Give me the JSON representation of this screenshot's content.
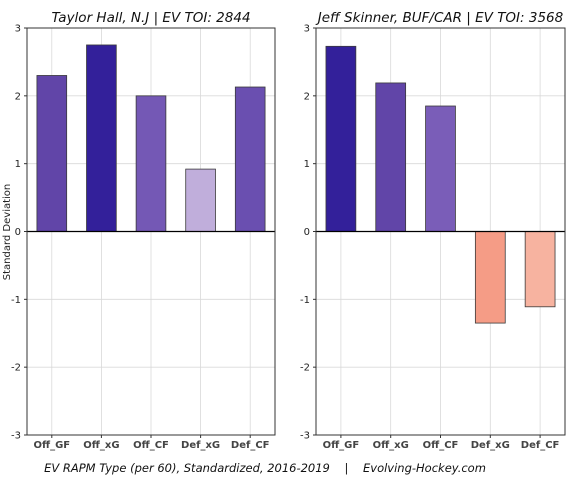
{
  "footer": "EV RAPM Type (per 60), Standardized, 2016-2019    |    Evolving-Hockey.com",
  "ylabel": "Standard Deviation",
  "chart_data": [
    {
      "type": "bar",
      "title": "Taylor Hall, N.J  |  EV TOI: 2844",
      "categories": [
        "Off_GF",
        "Off_xG",
        "Off_CF",
        "Def_xG",
        "Def_CF"
      ],
      "values": [
        2.3,
        2.75,
        2.0,
        0.92,
        2.13
      ],
      "colors": [
        "#6145a8",
        "#33209a",
        "#7458b5",
        "#c0aedb",
        "#6a4fb0"
      ],
      "ylabel": "Standard Deviation",
      "xlabel": "",
      "ylim": [
        -3,
        3
      ],
      "yticks": [
        -3,
        -2,
        -1,
        0,
        1,
        2,
        3
      ],
      "grid": true
    },
    {
      "type": "bar",
      "title": "Jeff Skinner, BUF/CAR  |  EV TOI: 3568",
      "categories": [
        "Off_GF",
        "Off_xG",
        "Off_CF",
        "Def_xG",
        "Def_CF"
      ],
      "values": [
        2.73,
        2.19,
        1.85,
        -1.35,
        -1.11
      ],
      "colors": [
        "#33209a",
        "#6145a8",
        "#7a5db8",
        "#f59c86",
        "#f7b3a0"
      ],
      "ylabel": "",
      "xlabel": "",
      "ylim": [
        -3,
        3
      ],
      "yticks": [
        -3,
        -2,
        -1,
        0,
        1,
        2,
        3
      ],
      "grid": true
    }
  ]
}
